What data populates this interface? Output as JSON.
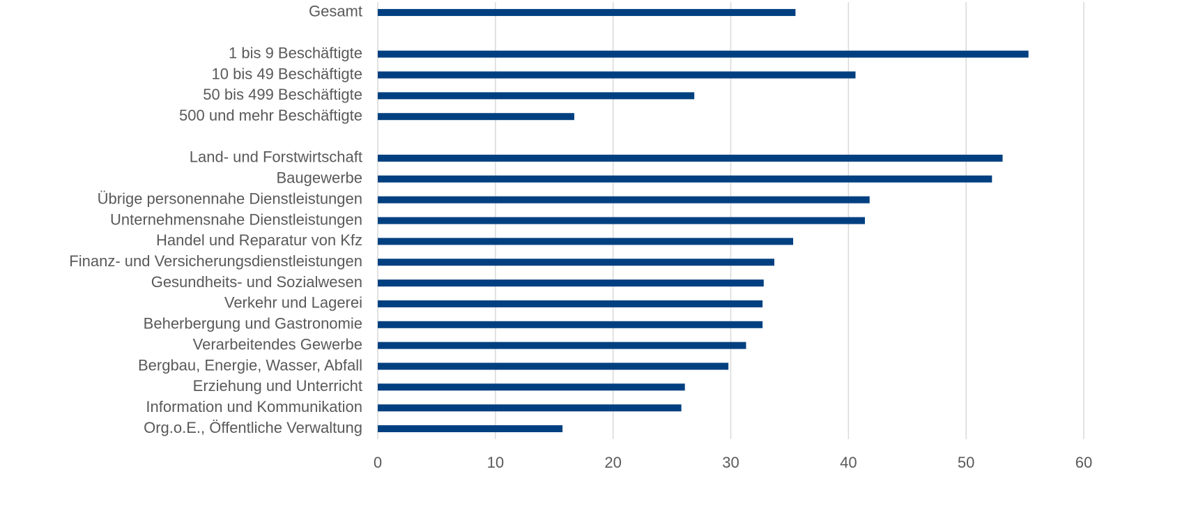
{
  "chart_data": {
    "type": "barh",
    "categories": [
      "Gesamt",
      null,
      "1 bis 9 Beschäftigte",
      "10 bis 49 Beschäftigte",
      "50 bis 499 Beschäftigte",
      "500 und mehr Beschäftigte",
      null,
      "Land- und Forstwirtschaft",
      "Baugewerbe",
      "Übrige personennahe Dienstleistungen",
      "Unternehmensnahe Dienstleistungen",
      "Handel und Reparatur von Kfz",
      "Finanz- und Versicherungsdienstleistungen",
      "Gesundheits- und Sozialwesen",
      "Verkehr und Lagerei",
      "Beherbergung und Gastronomie",
      "Verarbeitendes Gewerbe",
      "Bergbau, Energie, Wasser, Abfall",
      "Erziehung und Unterricht",
      "Information und Kommunikation",
      "Org.o.E., Öffentliche Verwaltung"
    ],
    "values": [
      35.5,
      null,
      55.3,
      40.6,
      26.9,
      16.7,
      null,
      53.1,
      52.2,
      41.8,
      41.4,
      35.3,
      33.7,
      32.8,
      32.7,
      32.7,
      31.3,
      29.8,
      26.1,
      25.8,
      15.7
    ],
    "color": "#004080",
    "xlim": [
      0,
      60
    ],
    "xticks": [
      0,
      10,
      20,
      30,
      40,
      50,
      60
    ],
    "grid": true
  }
}
